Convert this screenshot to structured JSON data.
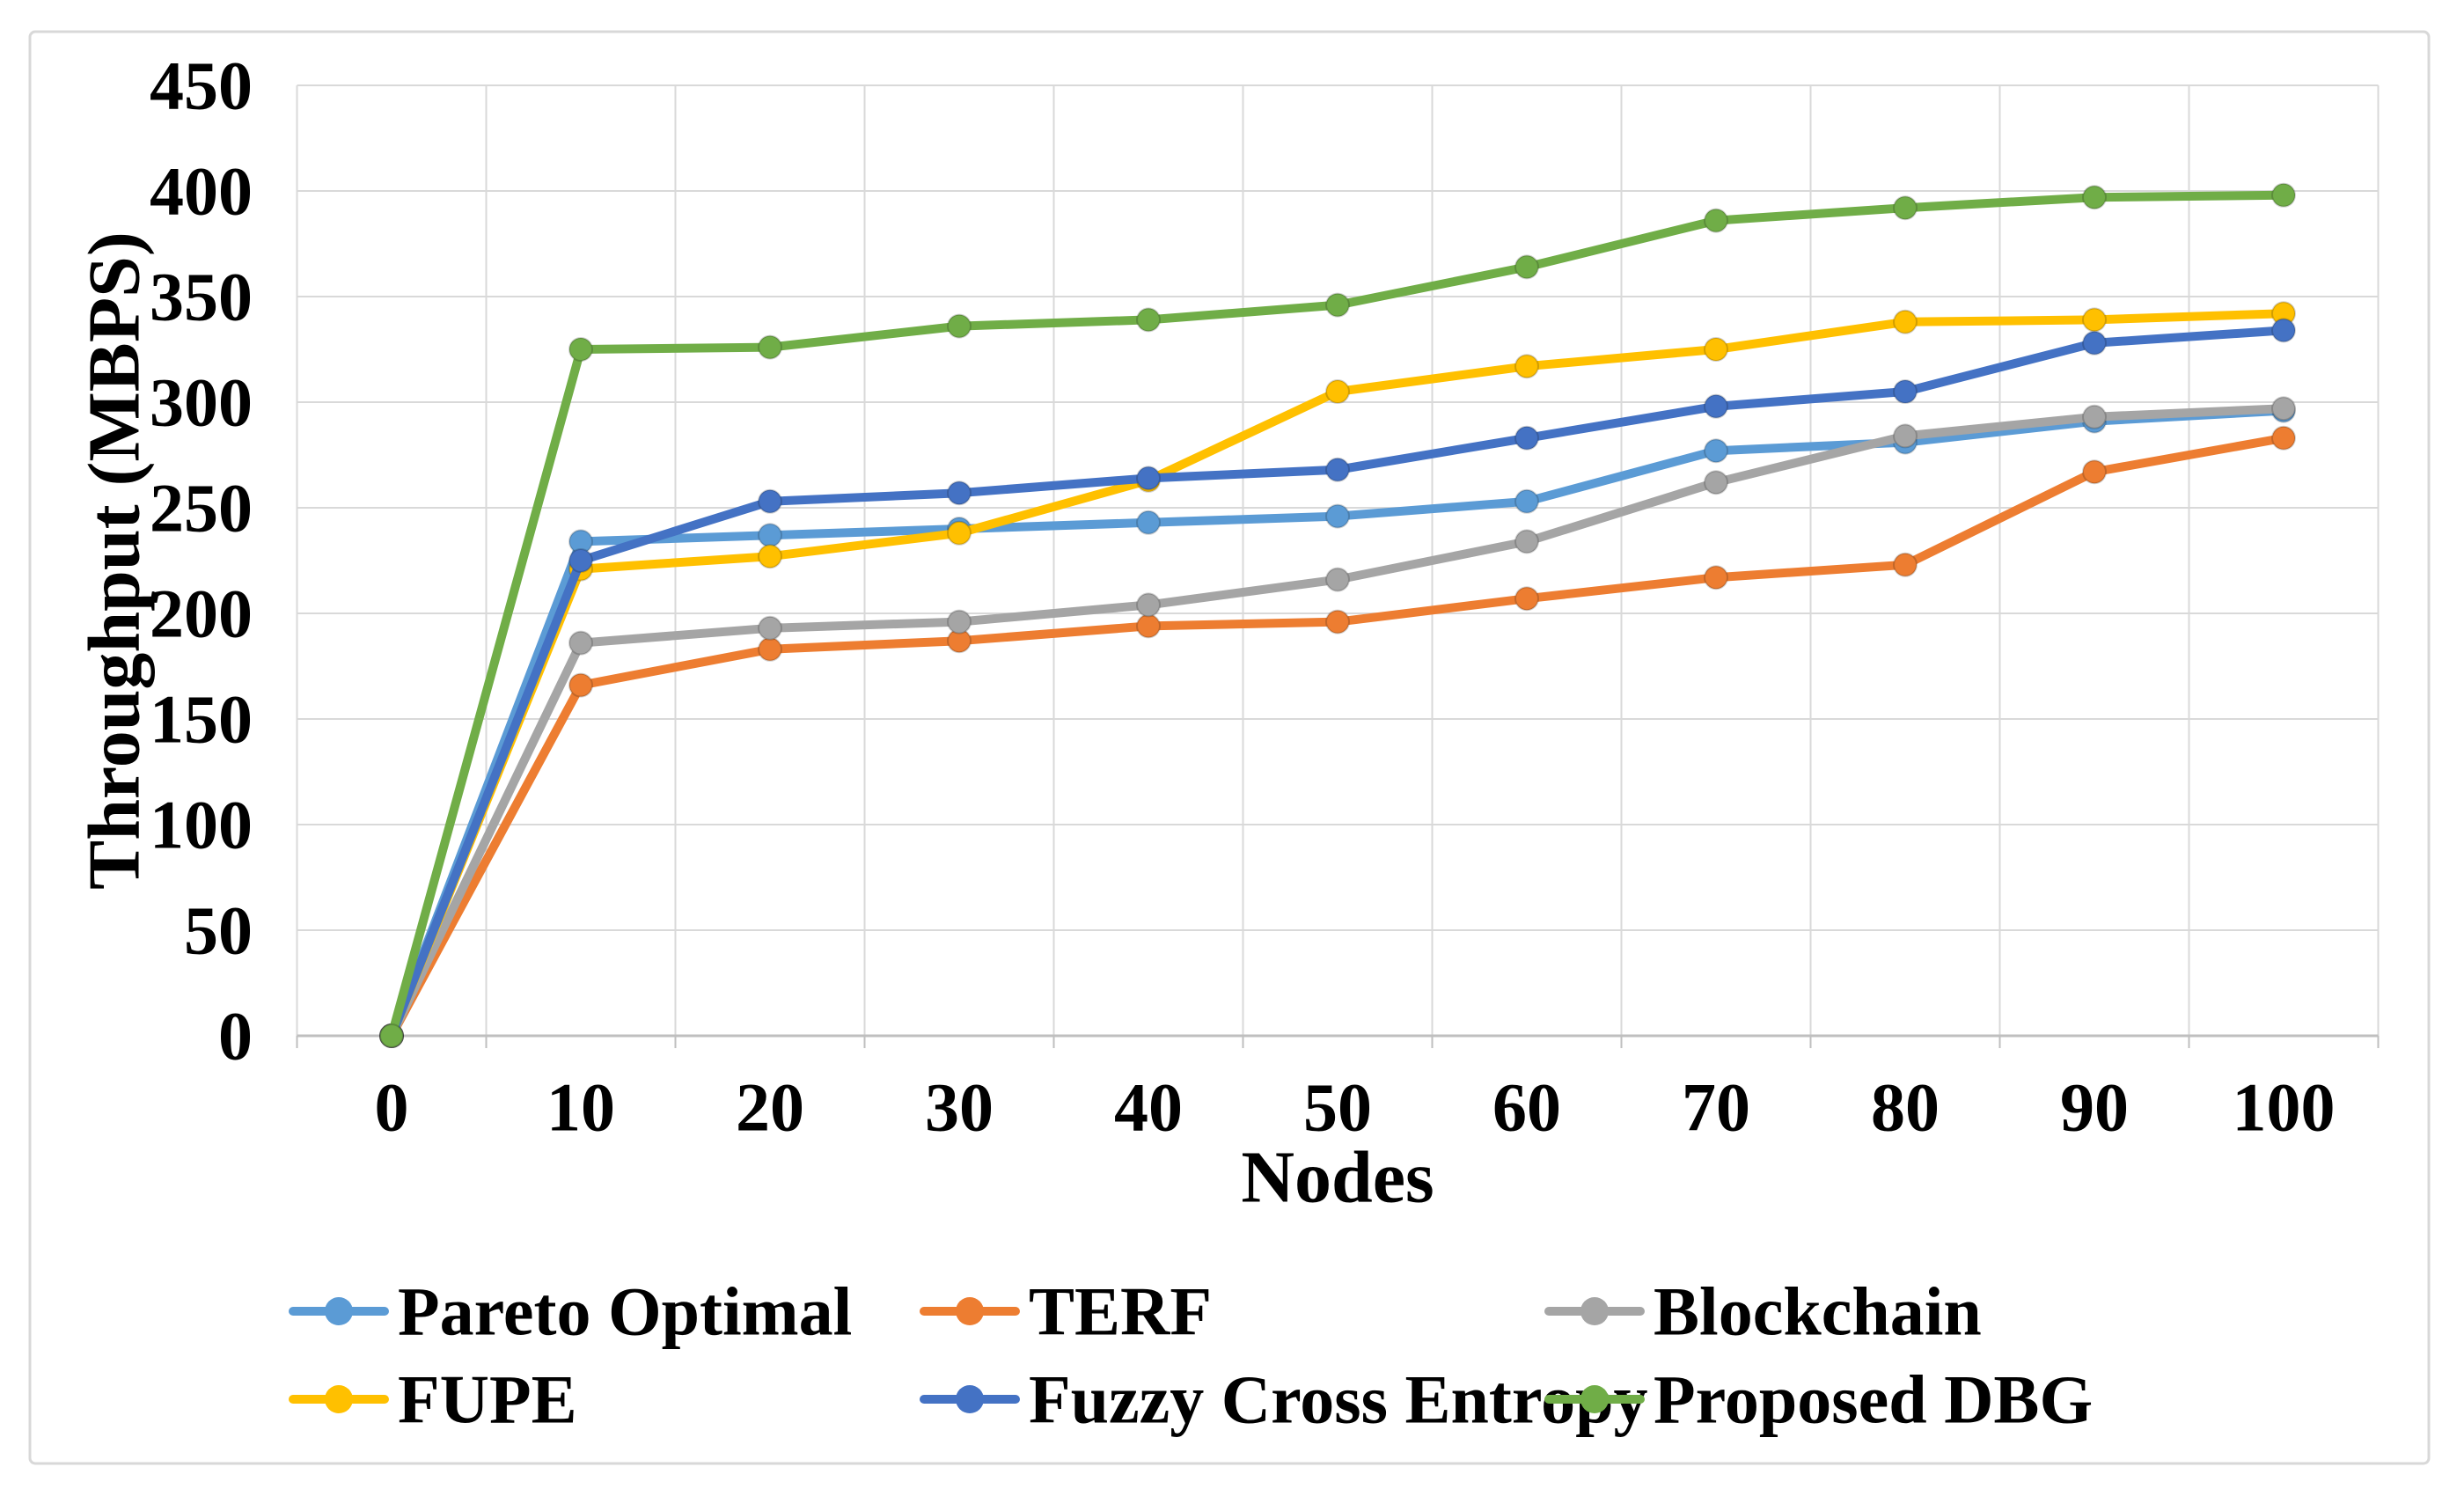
{
  "chart_data": {
    "type": "line",
    "title": "",
    "xlabel": "Nodes",
    "ylabel": "Throughput (MBPS)",
    "x": [
      0,
      10,
      20,
      30,
      40,
      50,
      60,
      70,
      80,
      90,
      100
    ],
    "xticks": [
      "0",
      "10",
      "20",
      "30",
      "40",
      "50",
      "60",
      "70",
      "80",
      "90",
      "100"
    ],
    "yticks": [
      0,
      50,
      100,
      150,
      200,
      250,
      300,
      350,
      400,
      450
    ],
    "ylim": [
      0,
      450
    ],
    "grid": true,
    "legend_position": "bottom",
    "series": [
      {
        "name": "Pareto Optimal",
        "color": "#5B9BD5",
        "values": [
          0,
          234,
          237,
          240,
          243,
          246,
          253,
          277,
          281,
          291,
          296
        ]
      },
      {
        "name": "TERF",
        "color": "#ED7D31",
        "values": [
          0,
          166,
          183,
          187,
          194,
          196,
          207,
          217,
          223,
          267,
          283
        ]
      },
      {
        "name": "Blockchain",
        "color": "#A5A5A5",
        "values": [
          0,
          186,
          193,
          196,
          204,
          216,
          234,
          262,
          284,
          293,
          297
        ]
      },
      {
        "name": "FUPE",
        "color": "#FFC000",
        "values": [
          0,
          221,
          227,
          238,
          263,
          305,
          317,
          325,
          338,
          339,
          342
        ]
      },
      {
        "name": "Fuzzy Cross Entropy",
        "color": "#4472C4",
        "values": [
          0,
          225,
          253,
          257,
          264,
          268,
          283,
          298,
          305,
          328,
          334
        ]
      },
      {
        "name": "Proposed DBG",
        "color": "#70AD47",
        "values": [
          0,
          325,
          326,
          336,
          339,
          346,
          364,
          386,
          392,
          397,
          398
        ]
      }
    ],
    "colors": {
      "gridline": "#D9D9D9",
      "axis_line": "#BFBFBF",
      "border": "#D8D8D8",
      "text": "#000000",
      "background": "#FFFFFF"
    }
  }
}
